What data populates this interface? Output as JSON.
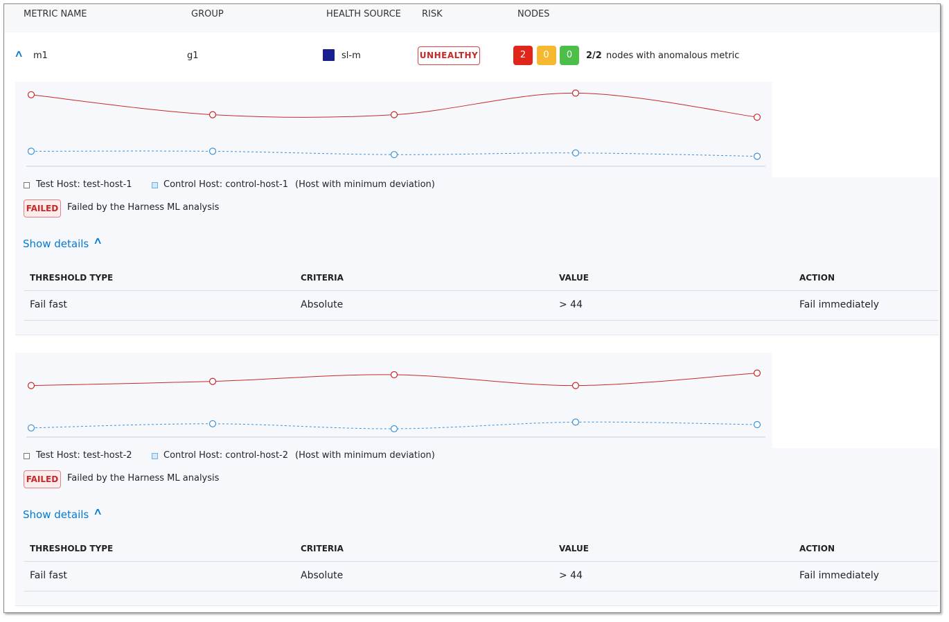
{
  "header": {
    "columns": [
      "METRIC NAME",
      "GROUP",
      "HEALTH SOURCE",
      "RISK",
      "NODES"
    ]
  },
  "metric": {
    "name": "m1",
    "group": "g1",
    "health_source": "sl-m",
    "risk": "UNHEALTHY",
    "node_counts": [
      "2",
      "0",
      "0"
    ],
    "anomalous": "2/2",
    "anomalous_text": "nodes with anomalous metric"
  },
  "chart_data": [
    {
      "type": "line",
      "categories": [
        null,
        null,
        null,
        null,
        null
      ],
      "ylim": [
        0,
        100
      ],
      "note": "(Host with minimum deviation)",
      "series": [
        {
          "name": "Test Host: test-host-1",
          "color": "#c62828",
          "values": [
            86,
            62,
            62,
            88,
            59
          ]
        },
        {
          "name": "Control Host: control-host-1",
          "color": "#3a8fd6",
          "values": [
            18,
            18,
            14,
            16,
            12
          ]
        }
      ]
    },
    {
      "type": "line",
      "categories": [
        null,
        null,
        null,
        null,
        null
      ],
      "ylim": [
        0,
        100
      ],
      "note": "(Host with minimum deviation)",
      "series": [
        {
          "name": "Test Host: test-host-2",
          "color": "#c62828",
          "values": [
            62,
            67,
            75,
            62,
            77
          ]
        },
        {
          "name": "Control Host: control-host-2",
          "color": "#3a8fd6",
          "values": [
            11,
            16,
            10,
            18,
            15
          ]
        }
      ]
    }
  ],
  "nodes": [
    {
      "status": "FAILED",
      "status_text": "Failed by the Harness ML analysis",
      "show_details": "Show details",
      "thresholds": {
        "columns": [
          "THRESHOLD TYPE",
          "CRITERIA",
          "VALUE",
          "ACTION"
        ],
        "rows": [
          [
            "Fail fast",
            "Absolute",
            "> 44",
            "Fail immediately"
          ]
        ]
      }
    },
    {
      "status": "FAILED",
      "status_text": "Failed by the Harness ML analysis",
      "show_details": "Show details",
      "thresholds": {
        "columns": [
          "THRESHOLD TYPE",
          "CRITERIA",
          "VALUE",
          "ACTION"
        ],
        "rows": [
          [
            "Fail fast",
            "Absolute",
            "> 44",
            "Fail immediately"
          ]
        ]
      }
    }
  ]
}
